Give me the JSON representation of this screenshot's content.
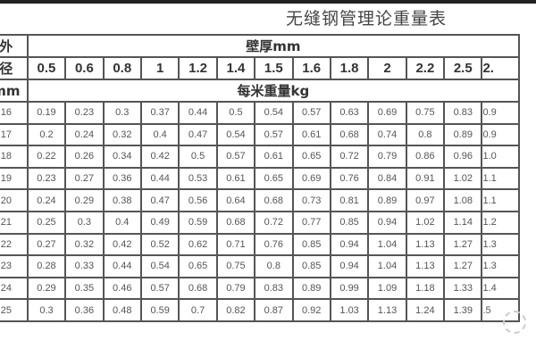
{
  "title": "无缝钢管理论重量表",
  "row_header_lines": [
    "外",
    "径",
    "mm"
  ],
  "thickness_header": "壁厚mm",
  "weight_header": "每米重量kg",
  "thicknesses": [
    "0.5",
    "0.6",
    "0.8",
    "1",
    "1.2",
    "1.4",
    "1.5",
    "1.6",
    "1.8",
    "2",
    "2.2",
    "2.5",
    "2."
  ],
  "rows": [
    {
      "od": "16",
      "values": [
        "0.19",
        "0.23",
        "0.3",
        "0.37",
        "0.44",
        "0.5",
        "0.54",
        "0.57",
        "0.63",
        "0.69",
        "0.75",
        "0.83",
        "0.9"
      ]
    },
    {
      "od": "17",
      "values": [
        "0.2",
        "0.24",
        "0.32",
        "0.4",
        "0.47",
        "0.54",
        "0.57",
        "0.61",
        "0.68",
        "0.74",
        "0.8",
        "0.89",
        "0.9"
      ]
    },
    {
      "od": "18",
      "values": [
        "0.22",
        "0.26",
        "0.34",
        "0.42",
        "0.5",
        "0.57",
        "0.61",
        "0.65",
        "0.72",
        "0.79",
        "0.86",
        "0.96",
        "1.0"
      ]
    },
    {
      "od": "19",
      "values": [
        "0.23",
        "0.27",
        "0.36",
        "0.44",
        "0.53",
        "0.61",
        "0.65",
        "0.69",
        "0.76",
        "0.84",
        "0.91",
        "1.02",
        "1.1"
      ]
    },
    {
      "od": "20",
      "values": [
        "0.24",
        "0.29",
        "0.38",
        "0.47",
        "0.56",
        "0.64",
        "0.68",
        "0.73",
        "0.81",
        "0.89",
        "0.97",
        "1.08",
        "1.1"
      ]
    },
    {
      "od": "21",
      "values": [
        "0.25",
        "0.3",
        "0.4",
        "0.49",
        "0.59",
        "0.68",
        "0.72",
        "0.77",
        "0.85",
        "0.94",
        "1.02",
        "1.14",
        "1.2"
      ]
    },
    {
      "od": "22",
      "values": [
        "0.27",
        "0.32",
        "0.42",
        "0.52",
        "0.62",
        "0.71",
        "0.76",
        "0.85",
        "0.94",
        "1.04",
        "1.13",
        "1.27",
        "1.3"
      ]
    },
    {
      "od": "23",
      "values": [
        "0.28",
        "0.33",
        "0.44",
        "0.54",
        "0.65",
        "0.75",
        "0.8",
        "0.85",
        "0.94",
        "1.04",
        "1.13",
        "1.27",
        "1.3"
      ]
    },
    {
      "od": "24",
      "values": [
        "0.29",
        "0.35",
        "0.46",
        "0.57",
        "0.68",
        "0.79",
        "0.83",
        "0.89",
        "0.99",
        "1.09",
        "1.18",
        "1.33",
        "1.4"
      ]
    },
    {
      "od": "25",
      "values": [
        "0.3",
        "0.36",
        "0.48",
        "0.59",
        "0.7",
        "0.82",
        "0.87",
        "0.92",
        "1.03",
        "1.13",
        "1.24",
        "1.39",
        ".5"
      ]
    }
  ]
}
